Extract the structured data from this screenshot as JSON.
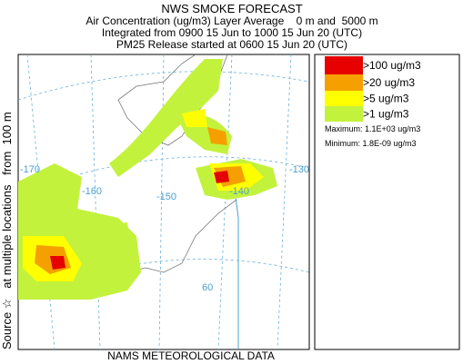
{
  "header": {
    "title": "NWS SMOKE FORECAST",
    "line1": "Air Concentration (ug/m3) Layer Average    0 m and  5000 m",
    "line2": "Integrated from 0900 15 Jun to 1000 15 Jun 20 (UTC)",
    "line3": "PM25 Release started at 0600 15 Jun 20 (UTC)"
  },
  "legend": {
    "items": [
      {
        "label": ">100 ug/m3",
        "color": "#e60000"
      },
      {
        "label": ">20 ug/m3",
        "color": "#f5a000"
      },
      {
        "label": ">5 ug/m3",
        "color": "#ffff00"
      },
      {
        "label": ">1 ug/m3",
        "color": "#c3f23c"
      }
    ],
    "maximum": "Maximum: 1.1E+03 ug/m3",
    "minimum": "Minimum: 1.8E-09 ug/m3"
  },
  "source_label": "Source ☆   at multiple locations   from  100 m",
  "footer": "NAMS METEOROLOGICAL DATA",
  "map_labels": [
    "-170",
    "-160",
    "-150",
    "-140",
    "-130",
    "60"
  ]
}
